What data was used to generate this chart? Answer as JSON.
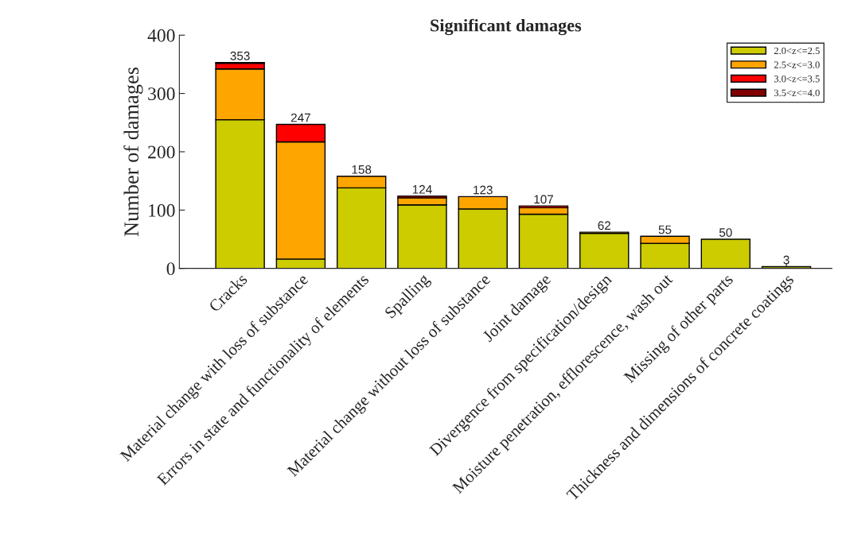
{
  "chart_data": {
    "type": "bar",
    "title": "Significant damages",
    "ylabel": "Number of damages",
    "categories": [
      "Cracks",
      "Material change with loss of substance",
      "Errors in state and functionality of elements",
      "Spalling",
      "Material change without loss of substance",
      "Joint damage",
      "Divergence from specification/design",
      "Moisture penetration, efflorescence, wash out",
      "Missing of other parts",
      "Thickness and dimensions of concrete coatings"
    ],
    "stacked": true,
    "series": [
      {
        "name": "2.0<z<=2.5",
        "color": "#cccc00",
        "values": [
          255,
          16,
          138,
          109,
          102,
          93,
          60,
          43,
          50,
          3
        ]
      },
      {
        "name": "2.5<z<=3.0",
        "color": "#ffa500",
        "values": [
          87,
          201,
          20,
          12,
          21,
          11,
          2,
          12,
          null,
          null
        ]
      },
      {
        "name": "3.0<z<=3.5",
        "color": "#ff0000",
        "values": [
          10,
          30,
          null,
          3,
          null,
          3,
          null,
          null,
          null,
          null
        ]
      },
      {
        "name": "3.5<z<=4.0",
        "color": "#800000",
        "values": [
          1,
          null,
          null,
          null,
          null,
          null,
          null,
          null,
          null,
          null
        ]
      }
    ],
    "totals": [
      "353",
      "247",
      "158",
      "124",
      "123",
      "107",
      "62",
      "55",
      "50",
      "3"
    ],
    "ylim": [
      0,
      400
    ],
    "yticks": [
      0,
      100,
      200,
      300,
      400
    ],
    "grid": false,
    "legend": "top right"
  }
}
